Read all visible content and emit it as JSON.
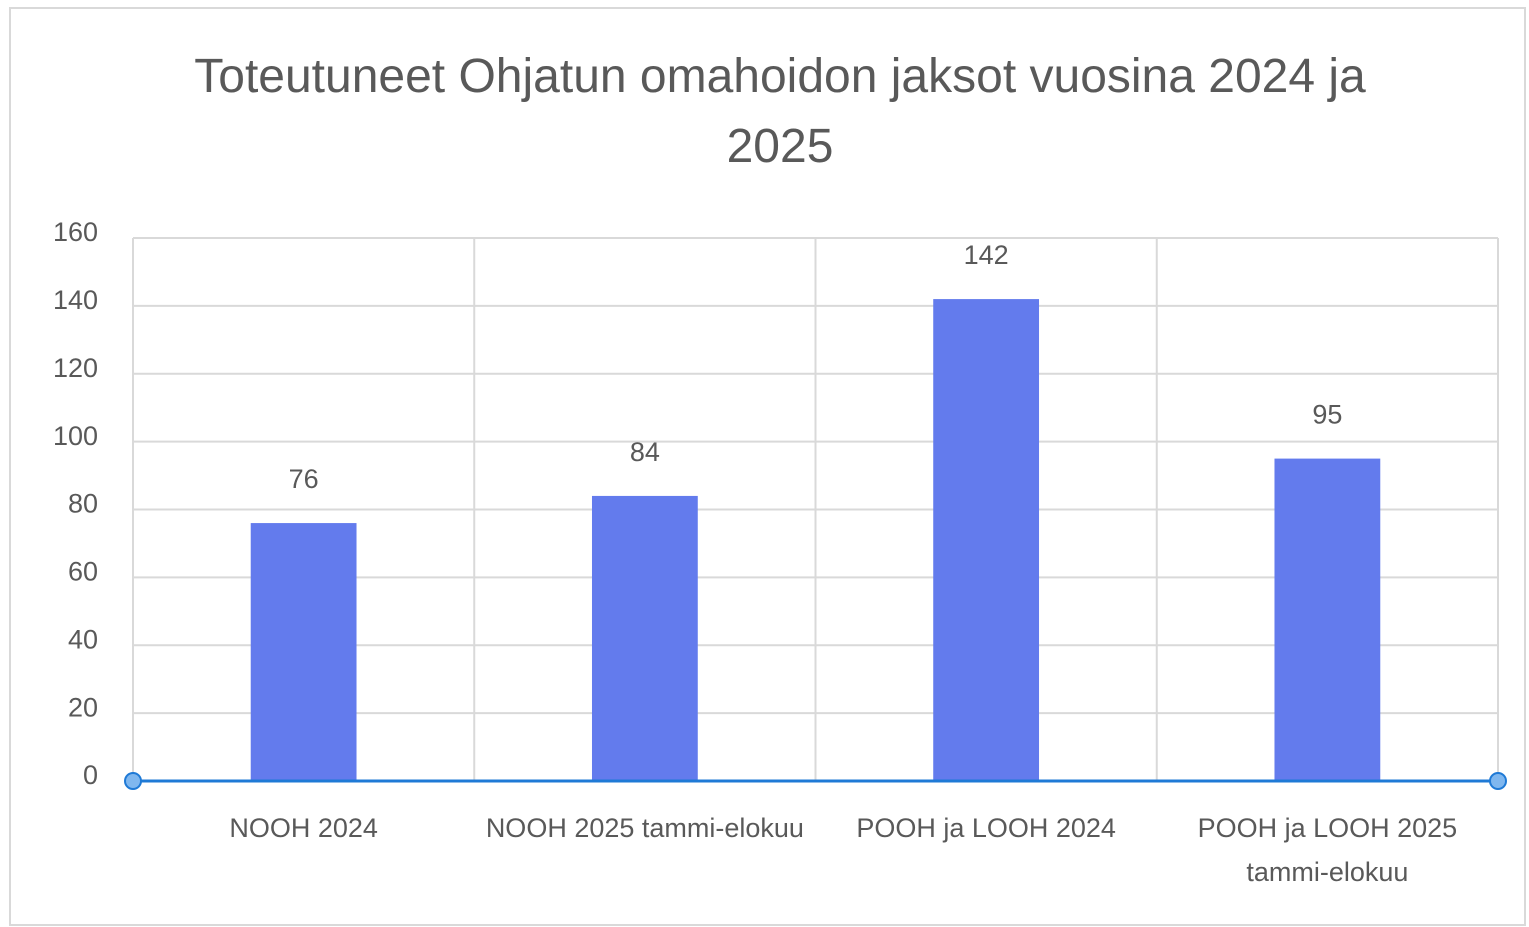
{
  "chart_data": {
    "type": "bar",
    "title": "Toteutuneet Ohjatun omahoidon jaksot vuosina 2024 ja 2025",
    "categories": [
      "NOOH 2024",
      "NOOH 2025 tammi-elokuu",
      "POOH ja LOOH 2024",
      "POOH ja LOOH 2025 tammi-elokuu"
    ],
    "values": [
      76,
      84,
      142,
      95
    ],
    "color": "#637bed",
    "ylim": [
      0,
      160
    ],
    "yticks": [
      0,
      20,
      40,
      60,
      80,
      100,
      120,
      140,
      160
    ],
    "grid": true
  }
}
